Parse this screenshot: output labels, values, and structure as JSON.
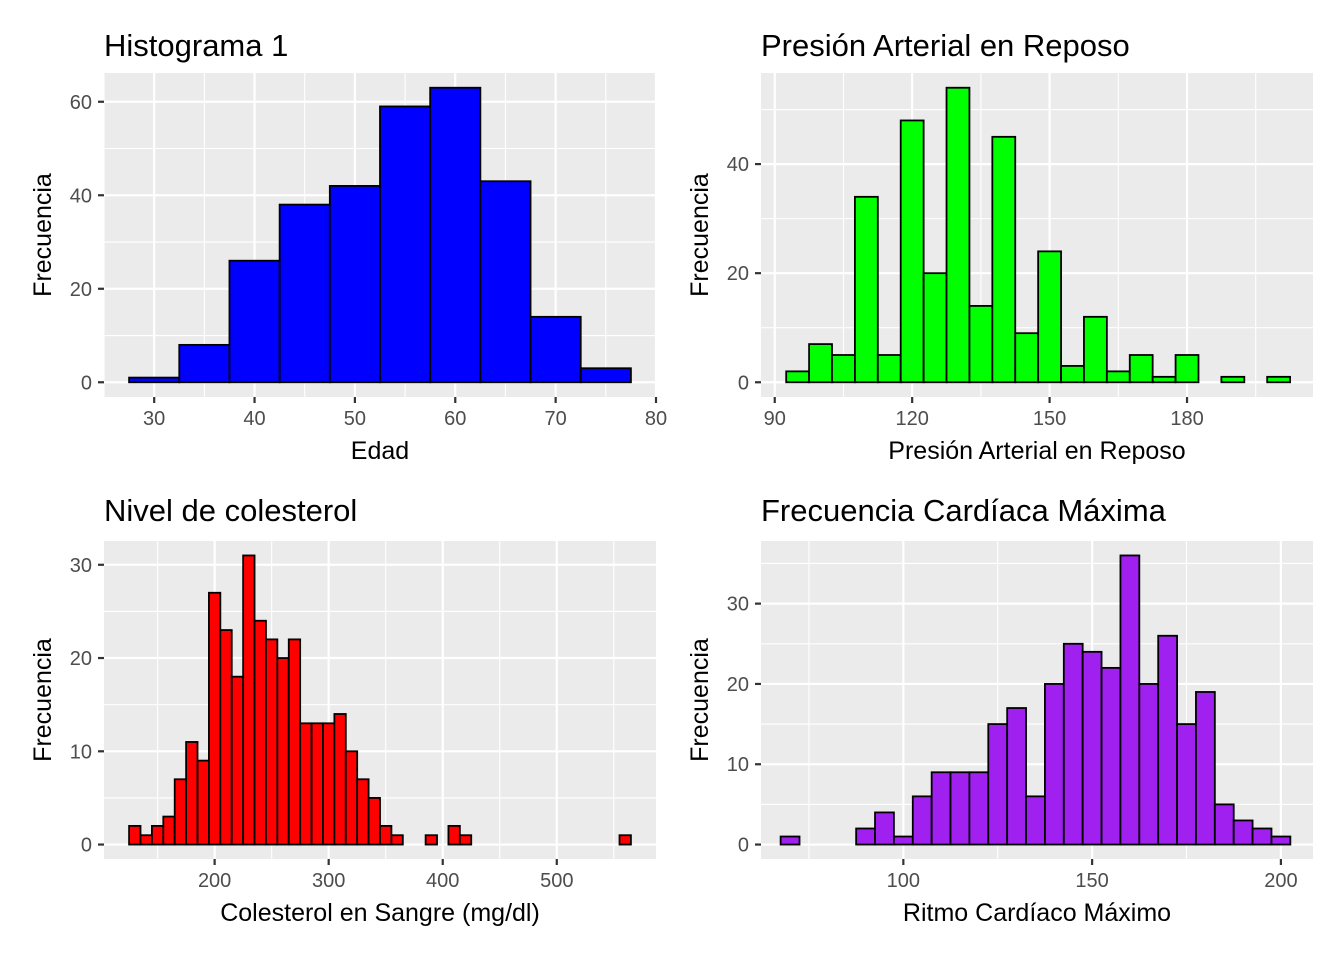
{
  "chart_data": [
    {
      "type": "bar",
      "title": "Histograma 1",
      "xlabel": "Edad",
      "ylabel": "Frecuencia",
      "fill": "#0000ff",
      "binwidth": 5,
      "bins": [
        {
          "x0": 27.5,
          "x1": 32.5,
          "count": 1
        },
        {
          "x0": 32.5,
          "x1": 37.5,
          "count": 8
        },
        {
          "x0": 37.5,
          "x1": 42.5,
          "count": 26
        },
        {
          "x0": 42.5,
          "x1": 47.5,
          "count": 38
        },
        {
          "x0": 47.5,
          "x1": 52.5,
          "count": 42
        },
        {
          "x0": 52.5,
          "x1": 57.5,
          "count": 59
        },
        {
          "x0": 57.5,
          "x1": 62.5,
          "count": 63
        },
        {
          "x0": 62.5,
          "x1": 67.5,
          "count": 43
        },
        {
          "x0": 67.5,
          "x1": 72.5,
          "count": 14
        },
        {
          "x0": 72.5,
          "x1": 77.5,
          "count": 3
        }
      ],
      "xlim": [
        25,
        80
      ],
      "ylim": [
        -3.15,
        66.15
      ],
      "xticks": [
        30,
        40,
        50,
        60,
        70,
        80
      ],
      "yticks": [
        0,
        20,
        40,
        60
      ],
      "grid": true
    },
    {
      "type": "bar",
      "title": "Presión Arterial en Reposo",
      "xlabel": "Presión Arterial en Reposo",
      "ylabel": "Frecuencia",
      "fill": "#00ff00",
      "binwidth": 5,
      "bins": [
        {
          "x0": 92.5,
          "x1": 97.5,
          "count": 2
        },
        {
          "x0": 97.5,
          "x1": 102.5,
          "count": 7
        },
        {
          "x0": 102.5,
          "x1": 107.5,
          "count": 5
        },
        {
          "x0": 107.5,
          "x1": 112.5,
          "count": 34
        },
        {
          "x0": 112.5,
          "x1": 117.5,
          "count": 5
        },
        {
          "x0": 117.5,
          "x1": 122.5,
          "count": 48
        },
        {
          "x0": 122.5,
          "x1": 127.5,
          "count": 20
        },
        {
          "x0": 127.5,
          "x1": 132.5,
          "count": 54
        },
        {
          "x0": 132.5,
          "x1": 137.5,
          "count": 14
        },
        {
          "x0": 137.5,
          "x1": 142.5,
          "count": 45
        },
        {
          "x0": 142.5,
          "x1": 147.5,
          "count": 9
        },
        {
          "x0": 147.5,
          "x1": 152.5,
          "count": 24
        },
        {
          "x0": 152.5,
          "x1": 157.5,
          "count": 3
        },
        {
          "x0": 157.5,
          "x1": 162.5,
          "count": 12
        },
        {
          "x0": 162.5,
          "x1": 167.5,
          "count": 2
        },
        {
          "x0": 167.5,
          "x1": 172.5,
          "count": 5
        },
        {
          "x0": 172.5,
          "x1": 177.5,
          "count": 1
        },
        {
          "x0": 177.5,
          "x1": 182.5,
          "count": 5
        },
        {
          "x0": 182.5,
          "x1": 187.5,
          "count": 0
        },
        {
          "x0": 187.5,
          "x1": 192.5,
          "count": 1
        },
        {
          "x0": 192.5,
          "x1": 197.5,
          "count": 0
        },
        {
          "x0": 197.5,
          "x1": 202.5,
          "count": 1
        }
      ],
      "xlim": [
        87,
        207.5
      ],
      "ylim": [
        -2.7,
        56.7
      ],
      "xticks": [
        90,
        120,
        150,
        180
      ],
      "yticks": [
        0,
        20,
        40
      ],
      "grid": true
    },
    {
      "type": "bar",
      "title": "Nivel de colesterol",
      "xlabel": "Colesterol en Sangre (mg/dl)",
      "ylabel": "Frecuencia",
      "fill": "#ff0000",
      "binwidth": 10,
      "bins": [
        {
          "x0": 125,
          "x1": 135,
          "count": 2
        },
        {
          "x0": 135,
          "x1": 145,
          "count": 1
        },
        {
          "x0": 145,
          "x1": 155,
          "count": 2
        },
        {
          "x0": 155,
          "x1": 165,
          "count": 3
        },
        {
          "x0": 165,
          "x1": 175,
          "count": 7
        },
        {
          "x0": 175,
          "x1": 185,
          "count": 11
        },
        {
          "x0": 185,
          "x1": 195,
          "count": 9
        },
        {
          "x0": 195,
          "x1": 205,
          "count": 27
        },
        {
          "x0": 205,
          "x1": 215,
          "count": 23
        },
        {
          "x0": 215,
          "x1": 225,
          "count": 18
        },
        {
          "x0": 225,
          "x1": 235,
          "count": 31
        },
        {
          "x0": 235,
          "x1": 245,
          "count": 24
        },
        {
          "x0": 245,
          "x1": 255,
          "count": 22
        },
        {
          "x0": 255,
          "x1": 265,
          "count": 20
        },
        {
          "x0": 265,
          "x1": 275,
          "count": 22
        },
        {
          "x0": 275,
          "x1": 285,
          "count": 13
        },
        {
          "x0": 285,
          "x1": 295,
          "count": 13
        },
        {
          "x0": 295,
          "x1": 305,
          "count": 13
        },
        {
          "x0": 305,
          "x1": 315,
          "count": 14
        },
        {
          "x0": 315,
          "x1": 325,
          "count": 10
        },
        {
          "x0": 325,
          "x1": 335,
          "count": 7
        },
        {
          "x0": 335,
          "x1": 345,
          "count": 5
        },
        {
          "x0": 345,
          "x1": 355,
          "count": 2
        },
        {
          "x0": 355,
          "x1": 365,
          "count": 1
        },
        {
          "x0": 365,
          "x1": 375,
          "count": 0
        },
        {
          "x0": 375,
          "x1": 385,
          "count": 0
        },
        {
          "x0": 385,
          "x1": 395,
          "count": 1
        },
        {
          "x0": 395,
          "x1": 405,
          "count": 0
        },
        {
          "x0": 405,
          "x1": 415,
          "count": 2
        },
        {
          "x0": 415,
          "x1": 425,
          "count": 1
        },
        {
          "x0": 425,
          "x1": 435,
          "count": 0
        },
        {
          "x0": 435,
          "x1": 445,
          "count": 0
        },
        {
          "x0": 445,
          "x1": 455,
          "count": 0
        },
        {
          "x0": 455,
          "x1": 465,
          "count": 0
        },
        {
          "x0": 465,
          "x1": 475,
          "count": 0
        },
        {
          "x0": 475,
          "x1": 485,
          "count": 0
        },
        {
          "x0": 485,
          "x1": 495,
          "count": 0
        },
        {
          "x0": 495,
          "x1": 505,
          "count": 0
        },
        {
          "x0": 505,
          "x1": 515,
          "count": 0
        },
        {
          "x0": 515,
          "x1": 525,
          "count": 0
        },
        {
          "x0": 525,
          "x1": 535,
          "count": 0
        },
        {
          "x0": 535,
          "x1": 545,
          "count": 0
        },
        {
          "x0": 545,
          "x1": 555,
          "count": 0
        },
        {
          "x0": 555,
          "x1": 565,
          "count": 1
        }
      ],
      "xlim": [
        103,
        587
      ],
      "ylim": [
        -1.55,
        32.55
      ],
      "xticks": [
        200,
        300,
        400,
        500
      ],
      "yticks": [
        0,
        10,
        20,
        30
      ],
      "grid": true
    },
    {
      "type": "bar",
      "title": "Frecuencia Cardíaca Máxima",
      "xlabel": "Ritmo Cardíaco Máximo",
      "ylabel": "Frecuencia",
      "fill": "#a020f0",
      "binwidth": 5,
      "bins": [
        {
          "x0": 67.5,
          "x1": 72.5,
          "count": 1
        },
        {
          "x0": 72.5,
          "x1": 77.5,
          "count": 0
        },
        {
          "x0": 77.5,
          "x1": 82.5,
          "count": 0
        },
        {
          "x0": 82.5,
          "x1": 87.5,
          "count": 0
        },
        {
          "x0": 87.5,
          "x1": 92.5,
          "count": 2
        },
        {
          "x0": 92.5,
          "x1": 97.5,
          "count": 4
        },
        {
          "x0": 97.5,
          "x1": 102.5,
          "count": 1
        },
        {
          "x0": 102.5,
          "x1": 107.5,
          "count": 6
        },
        {
          "x0": 107.5,
          "x1": 112.5,
          "count": 9
        },
        {
          "x0": 112.5,
          "x1": 117.5,
          "count": 9
        },
        {
          "x0": 117.5,
          "x1": 122.5,
          "count": 9
        },
        {
          "x0": 122.5,
          "x1": 127.5,
          "count": 15
        },
        {
          "x0": 127.5,
          "x1": 132.5,
          "count": 17
        },
        {
          "x0": 132.5,
          "x1": 137.5,
          "count": 6
        },
        {
          "x0": 137.5,
          "x1": 142.5,
          "count": 20
        },
        {
          "x0": 142.5,
          "x1": 147.5,
          "count": 25
        },
        {
          "x0": 147.5,
          "x1": 152.5,
          "count": 24
        },
        {
          "x0": 152.5,
          "x1": 157.5,
          "count": 22
        },
        {
          "x0": 157.5,
          "x1": 162.5,
          "count": 36
        },
        {
          "x0": 162.5,
          "x1": 167.5,
          "count": 20
        },
        {
          "x0": 167.5,
          "x1": 172.5,
          "count": 26
        },
        {
          "x0": 172.5,
          "x1": 177.5,
          "count": 15
        },
        {
          "x0": 177.5,
          "x1": 182.5,
          "count": 19
        },
        {
          "x0": 182.5,
          "x1": 187.5,
          "count": 5
        },
        {
          "x0": 187.5,
          "x1": 192.5,
          "count": 3
        },
        {
          "x0": 192.5,
          "x1": 197.5,
          "count": 2
        },
        {
          "x0": 197.5,
          "x1": 202.5,
          "count": 1
        }
      ],
      "xlim": [
        62.3,
        208.5
      ],
      "ylim": [
        -1.8,
        37.8
      ],
      "xticks": [
        100,
        150,
        200
      ],
      "yticks": [
        0,
        10,
        20,
        30
      ],
      "grid": true
    }
  ]
}
